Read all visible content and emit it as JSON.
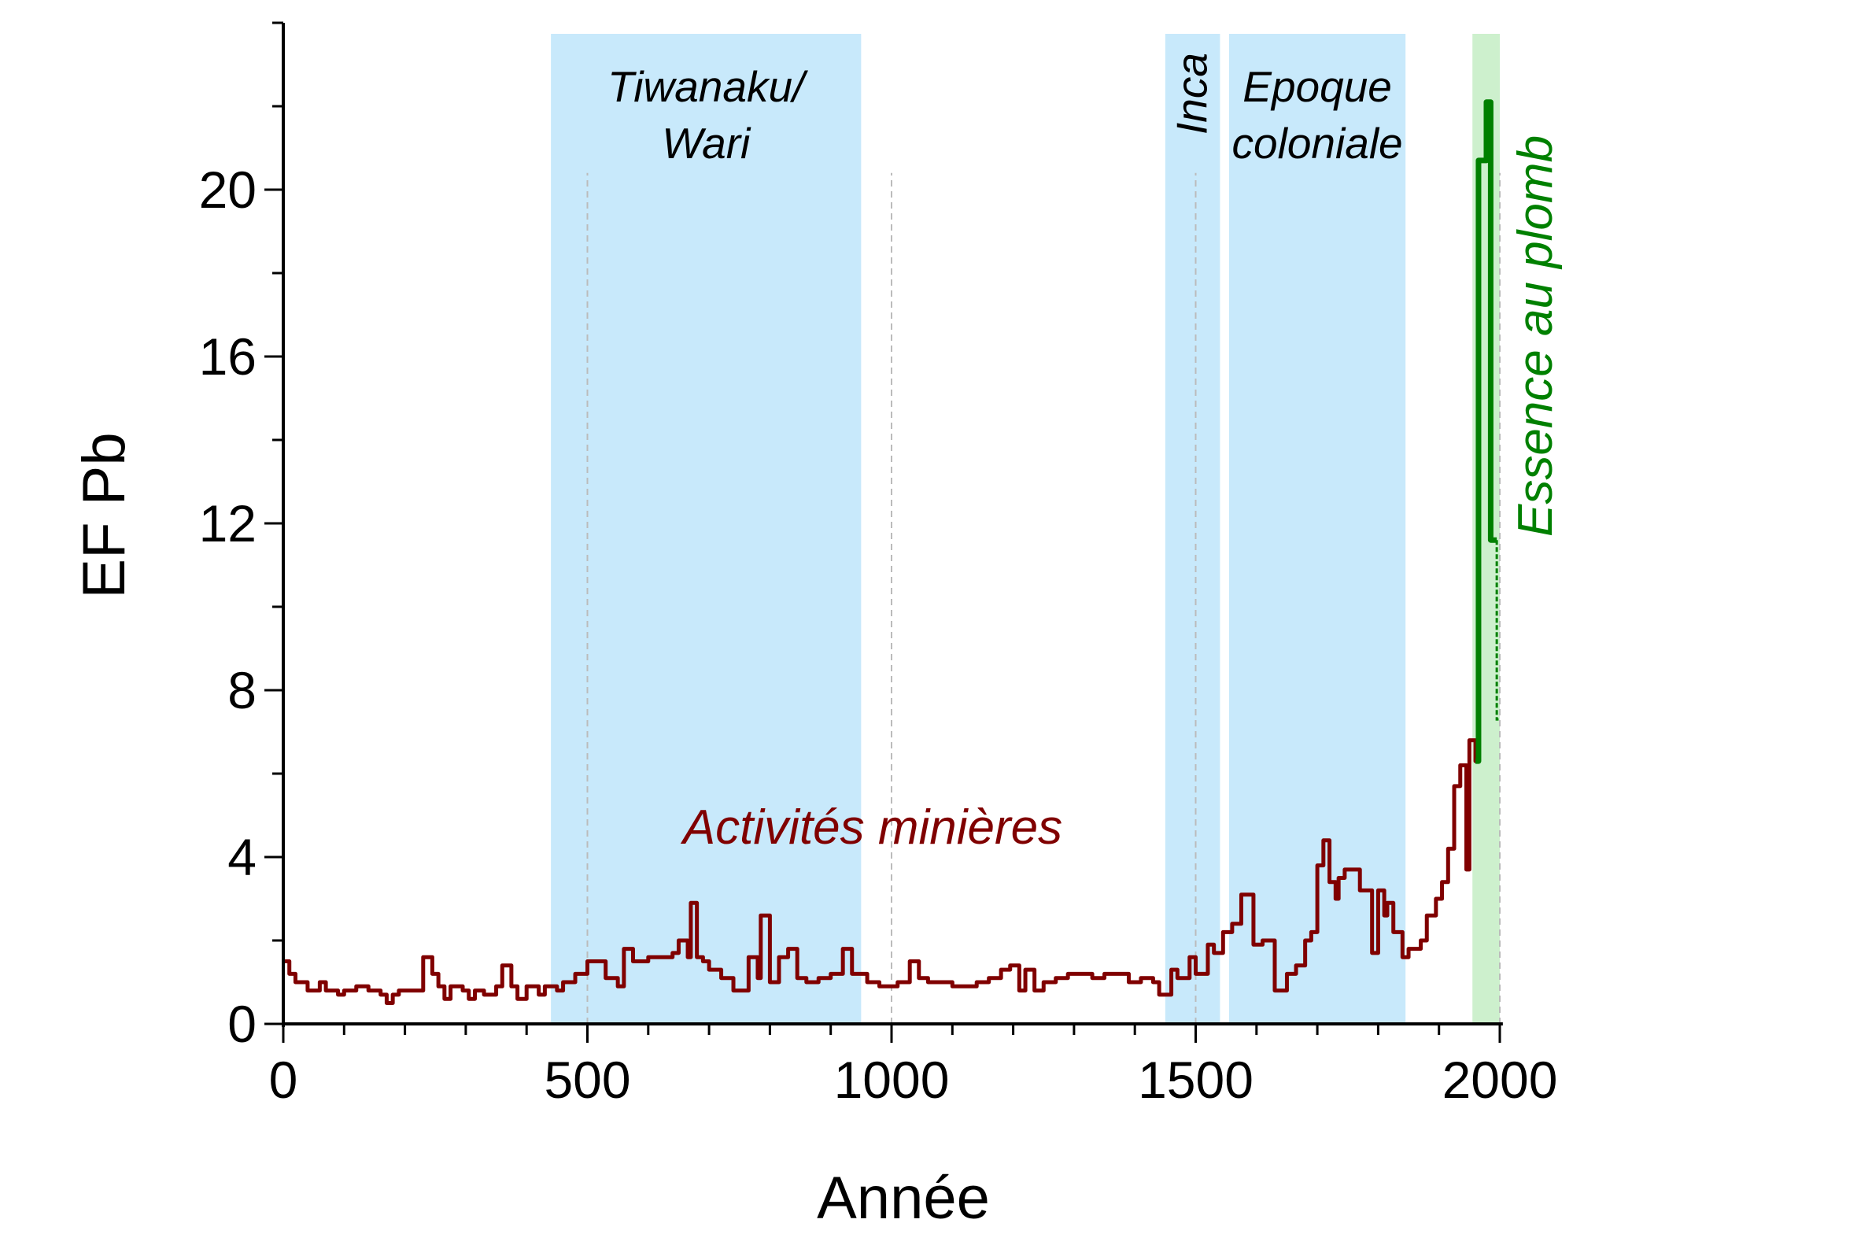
{
  "chart_data": {
    "type": "line",
    "xlabel": "Année",
    "ylabel": "EF Pb",
    "xlim": [
      0,
      2005
    ],
    "ylim": [
      0,
      24
    ],
    "x_ticks": [
      0,
      500,
      1000,
      1500,
      2000
    ],
    "y_ticks": [
      0,
      4,
      8,
      12,
      16,
      20
    ],
    "grid": false,
    "colors": {
      "mining": "#800000",
      "gasoline": "#008000",
      "period_band": "#c8e9fb",
      "gasoline_band": "#cdf0cd"
    },
    "periods": [
      {
        "lines": [
          "Tiwanaku/",
          "Wari"
        ],
        "start": 440,
        "end": 950
      },
      {
        "lines": [
          "Inca"
        ],
        "start": 1450,
        "end": 1540,
        "vertical": true
      },
      {
        "lines": [
          "Epoque",
          "coloniale"
        ],
        "start": 1555,
        "end": 1845
      }
    ],
    "gasoline_band": {
      "start": 1955,
      "end": 2000
    },
    "reference_lines": [
      500,
      1000,
      1500,
      2000
    ],
    "series": [
      {
        "name": "Activités minières",
        "step": true,
        "points": [
          [
            0,
            1.5
          ],
          [
            10,
            1.2
          ],
          [
            20,
            1.0
          ],
          [
            40,
            0.8
          ],
          [
            60,
            1.0
          ],
          [
            70,
            0.8
          ],
          [
            90,
            0.7
          ],
          [
            100,
            0.8
          ],
          [
            120,
            0.9
          ],
          [
            140,
            0.8
          ],
          [
            160,
            0.7
          ],
          [
            170,
            0.5
          ],
          [
            180,
            0.7
          ],
          [
            190,
            0.8
          ],
          [
            210,
            0.8
          ],
          [
            230,
            1.6
          ],
          [
            245,
            1.2
          ],
          [
            255,
            0.9
          ],
          [
            265,
            0.6
          ],
          [
            275,
            0.9
          ],
          [
            295,
            0.8
          ],
          [
            305,
            0.6
          ],
          [
            315,
            0.8
          ],
          [
            330,
            0.7
          ],
          [
            350,
            0.9
          ],
          [
            360,
            1.4
          ],
          [
            375,
            0.9
          ],
          [
            385,
            0.6
          ],
          [
            400,
            0.9
          ],
          [
            420,
            0.7
          ],
          [
            430,
            0.9
          ],
          [
            450,
            0.8
          ],
          [
            460,
            1.0
          ],
          [
            480,
            1.2
          ],
          [
            500,
            1.5
          ],
          [
            520,
            1.5
          ],
          [
            530,
            1.1
          ],
          [
            550,
            0.9
          ],
          [
            560,
            1.8
          ],
          [
            575,
            1.5
          ],
          [
            600,
            1.6
          ],
          [
            620,
            1.6
          ],
          [
            640,
            1.7
          ],
          [
            650,
            2.0
          ],
          [
            665,
            1.6
          ],
          [
            670,
            2.9
          ],
          [
            680,
            1.6
          ],
          [
            690,
            1.5
          ],
          [
            700,
            1.3
          ],
          [
            720,
            1.1
          ],
          [
            740,
            0.8
          ],
          [
            760,
            0.8
          ],
          [
            765,
            1.6
          ],
          [
            780,
            1.1
          ],
          [
            785,
            2.6
          ],
          [
            800,
            1.0
          ],
          [
            815,
            1.6
          ],
          [
            830,
            1.8
          ],
          [
            845,
            1.1
          ],
          [
            860,
            1.0
          ],
          [
            880,
            1.1
          ],
          [
            900,
            1.2
          ],
          [
            920,
            1.8
          ],
          [
            935,
            1.2
          ],
          [
            960,
            1.0
          ],
          [
            980,
            0.9
          ],
          [
            1000,
            0.9
          ],
          [
            1010,
            1.0
          ],
          [
            1030,
            1.5
          ],
          [
            1045,
            1.1
          ],
          [
            1060,
            1.0
          ],
          [
            1080,
            1.0
          ],
          [
            1100,
            0.9
          ],
          [
            1120,
            0.9
          ],
          [
            1140,
            1.0
          ],
          [
            1160,
            1.1
          ],
          [
            1180,
            1.3
          ],
          [
            1195,
            1.4
          ],
          [
            1210,
            0.8
          ],
          [
            1220,
            1.3
          ],
          [
            1235,
            0.8
          ],
          [
            1250,
            1.0
          ],
          [
            1270,
            1.1
          ],
          [
            1290,
            1.2
          ],
          [
            1310,
            1.2
          ],
          [
            1330,
            1.1
          ],
          [
            1350,
            1.2
          ],
          [
            1370,
            1.2
          ],
          [
            1390,
            1.0
          ],
          [
            1410,
            1.1
          ],
          [
            1430,
            1.0
          ],
          [
            1440,
            0.7
          ],
          [
            1460,
            1.3
          ],
          [
            1470,
            1.1
          ],
          [
            1490,
            1.6
          ],
          [
            1500,
            1.2
          ],
          [
            1520,
            1.9
          ],
          [
            1530,
            1.7
          ],
          [
            1545,
            2.2
          ],
          [
            1560,
            2.4
          ],
          [
            1575,
            3.1
          ],
          [
            1595,
            1.9
          ],
          [
            1610,
            2.0
          ],
          [
            1630,
            0.8
          ],
          [
            1650,
            1.2
          ],
          [
            1665,
            1.4
          ],
          [
            1680,
            2.0
          ],
          [
            1690,
            2.2
          ],
          [
            1700,
            3.8
          ],
          [
            1710,
            4.4
          ],
          [
            1720,
            3.4
          ],
          [
            1730,
            3.0
          ],
          [
            1735,
            3.5
          ],
          [
            1745,
            3.7
          ],
          [
            1760,
            3.7
          ],
          [
            1770,
            3.2
          ],
          [
            1790,
            1.7
          ],
          [
            1800,
            3.2
          ],
          [
            1810,
            2.6
          ],
          [
            1815,
            2.9
          ],
          [
            1825,
            2.2
          ],
          [
            1840,
            1.6
          ],
          [
            1850,
            1.8
          ],
          [
            1860,
            1.8
          ],
          [
            1870,
            2.0
          ],
          [
            1880,
            2.6
          ],
          [
            1895,
            3.0
          ],
          [
            1905,
            3.4
          ],
          [
            1915,
            4.2
          ],
          [
            1925,
            5.7
          ],
          [
            1935,
            6.2
          ],
          [
            1945,
            3.7
          ],
          [
            1950,
            6.8
          ],
          [
            1960,
            6.3
          ]
        ]
      },
      {
        "name": "Essence au plomb",
        "step": true,
        "points": [
          [
            1960,
            6.3
          ],
          [
            1965,
            20.7
          ],
          [
            1978,
            22.1
          ],
          [
            1985,
            11.6
          ],
          [
            1995,
            7.3
          ]
        ]
      }
    ]
  }
}
